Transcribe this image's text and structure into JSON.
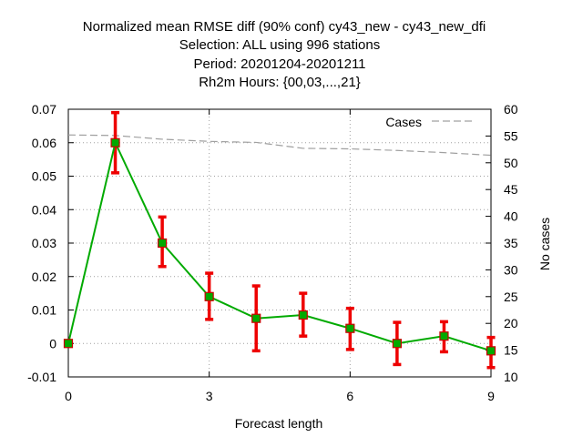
{
  "chart_data": {
    "type": "line",
    "title": [
      "Normalized mean RMSE diff (90% conf) cy43_new - cy43_new_dfi",
      "Selection: ALL using   996 stations",
      "Period: 20201204-20201211",
      "Rh2m   Hours: {00,03,...,21}"
    ],
    "xlabel": "Forecast length",
    "ylabel": "",
    "y2label": "No cases",
    "xlim": [
      0,
      9
    ],
    "ylim": [
      -0.01,
      0.07
    ],
    "y2lim": [
      10,
      60
    ],
    "x_ticks": [
      "0",
      "3",
      "6",
      "9"
    ],
    "x_tick_values": [
      0,
      3,
      6,
      9
    ],
    "y_ticks": [
      "-0.01",
      "0",
      "0.01",
      "0.02",
      "0.03",
      "0.04",
      "0.05",
      "0.06",
      "0.07"
    ],
    "y_tick_values": [
      -0.01,
      0,
      0.01,
      0.02,
      0.03,
      0.04,
      0.05,
      0.06,
      0.07
    ],
    "y2_ticks": [
      "10",
      "15",
      "20",
      "25",
      "30",
      "35",
      "40",
      "45",
      "50",
      "55",
      "60"
    ],
    "y2_tick_values": [
      10,
      15,
      20,
      25,
      30,
      35,
      40,
      45,
      50,
      55,
      60
    ],
    "grid": true,
    "legend_position": "top-right",
    "x": [
      0,
      1,
      2,
      3,
      4,
      5,
      6,
      7,
      8,
      9
    ],
    "series": [
      {
        "values": [
          0.0,
          0.06,
          0.03,
          0.014,
          0.0075,
          0.0085,
          0.0045,
          0.0,
          0.0022,
          -0.0022
        ],
        "error_low": [
          0.0,
          0.051,
          0.023,
          0.0072,
          -0.0022,
          0.0022,
          -0.0018,
          -0.0063,
          -0.0025,
          -0.0072
        ],
        "error_high": [
          0.0,
          0.069,
          0.0378,
          0.021,
          0.0172,
          0.015,
          0.0105,
          0.0063,
          0.0065,
          0.0018
        ],
        "color": "#00aa00",
        "error_color": "#ee0000",
        "axis": "left"
      },
      {
        "name": "Cases",
        "values": [
          55.2,
          55.1,
          54.4,
          54.0,
          53.8,
          52.7,
          52.6,
          52.3,
          51.9,
          51.4
        ],
        "color": "#a0a0a0",
        "dashed": true,
        "axis": "right"
      }
    ]
  }
}
